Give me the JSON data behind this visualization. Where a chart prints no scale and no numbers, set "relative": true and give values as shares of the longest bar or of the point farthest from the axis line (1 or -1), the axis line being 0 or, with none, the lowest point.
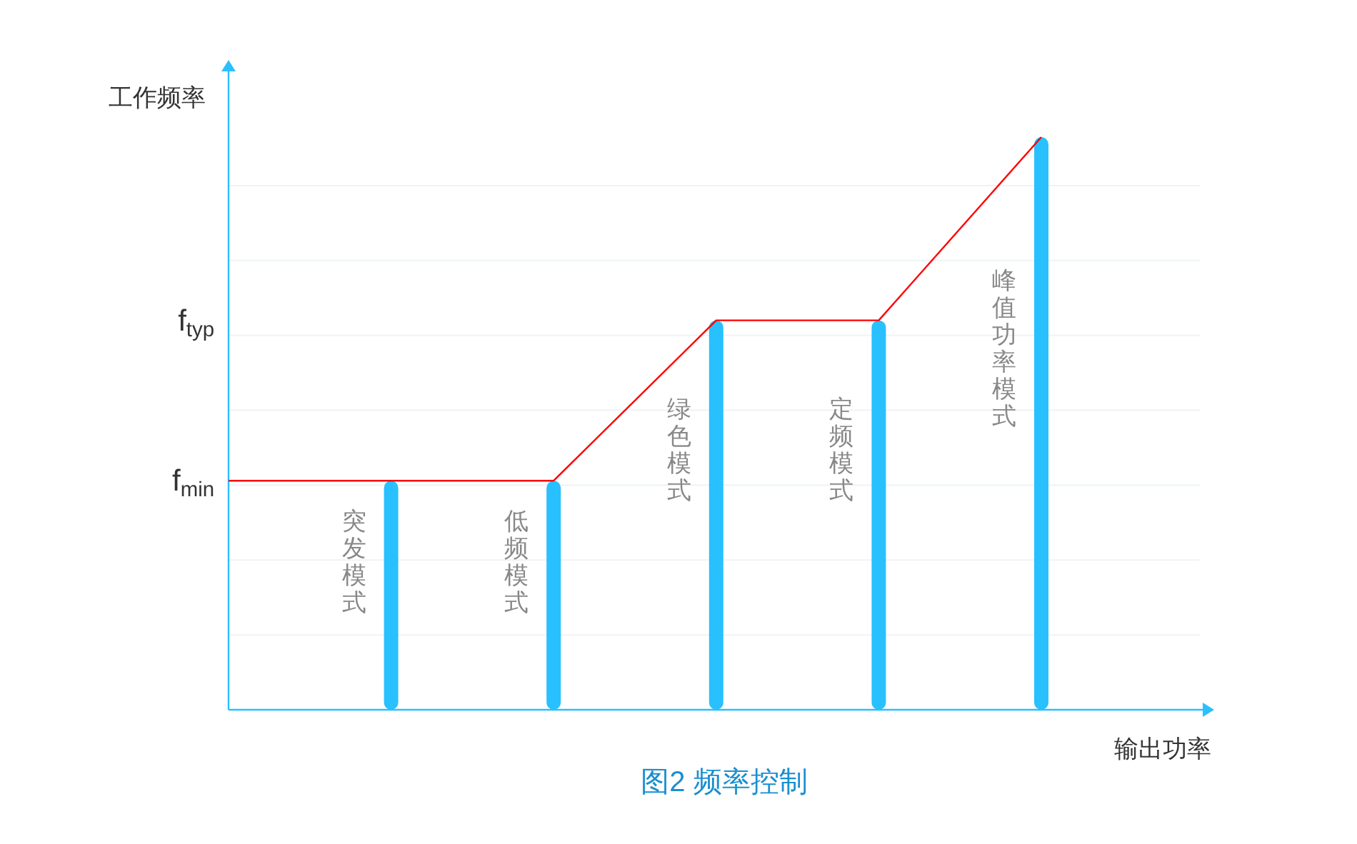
{
  "chart_data": {
    "type": "bar",
    "title": "图2 频率控制",
    "xlabel": "输出功率",
    "ylabel": "工作频率",
    "relative": true,
    "grid": "y",
    "categories": [
      null,
      "突发模式",
      "低频模式",
      "绿色模式",
      "定频模式",
      "峰值功率模式"
    ],
    "series": [
      {
        "color": "#29c0ff",
        "values": [
          null,
          0.4,
          0.4,
          0.68,
          0.68,
          1
        ]
      },
      {
        "type": "line",
        "color": "#ff0000",
        "values": [
          0.4,
          0.4,
          0.4,
          0.68,
          0.68,
          1
        ]
      }
    ],
    "annotations": [
      "f$_{min}$",
      "f$_{typ}$"
    ]
  }
}
